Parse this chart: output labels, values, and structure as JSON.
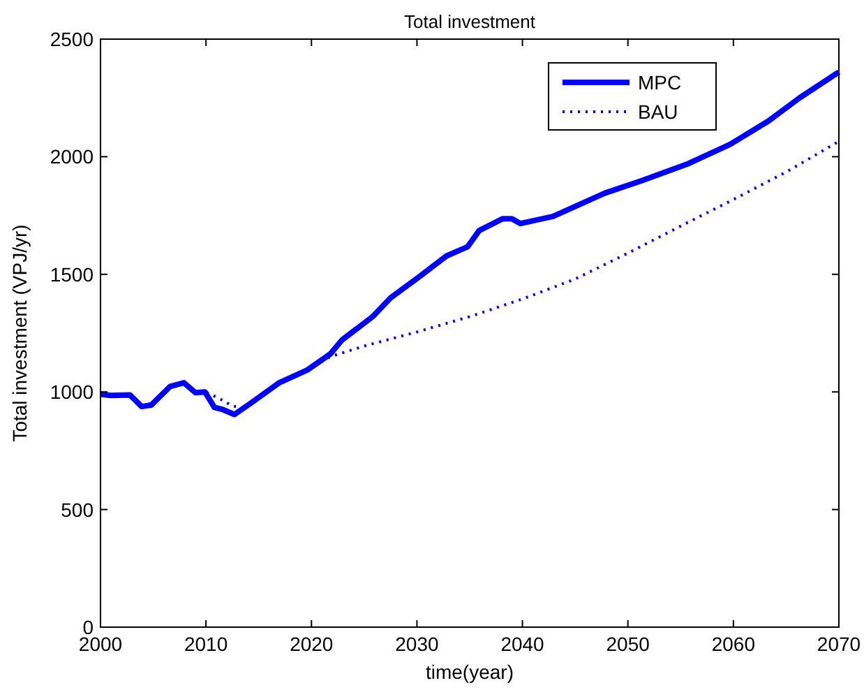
{
  "chart_data": {
    "type": "line",
    "title": "Total investment",
    "xlabel": "time(year)",
    "ylabel": "Total investment (VPJ/yr)",
    "xlim": [
      2000,
      2070
    ],
    "xticks": [
      2000,
      2010,
      2020,
      2030,
      2040,
      2050,
      2060,
      2070
    ],
    "ylim": [
      0,
      2500
    ],
    "yticks": [
      0,
      500,
      1000,
      1500,
      2000,
      2500
    ],
    "grid": false,
    "legend": "top right",
    "series": [
      {
        "name": "MPC",
        "color": "#0000ff",
        "line_style": "solid",
        "x": [
          2000,
          2001,
          2002.8,
          2003.9,
          2004.8,
          2006.6,
          2007.9,
          2009,
          2009.9,
          2010.8,
          2011.6,
          2012.7,
          2014.3,
          2016.9,
          2019.6,
          2021.8,
          2022.9,
          2025.8,
          2027.5,
          2030.2,
          2032.8,
          2034.8,
          2035.9,
          2038.1,
          2039,
          2039.8,
          2042.9,
          2047.8,
          2051.3,
          2055.7,
          2059.7,
          2063.3,
          2066.3,
          2070
        ],
        "values": [
          990,
          985,
          987,
          938,
          944,
          1023,
          1039,
          997,
          1000,
          934,
          925,
          904,
          954,
          1038,
          1093,
          1162,
          1221,
          1320,
          1400,
          1489,
          1578,
          1617,
          1686,
          1736,
          1736,
          1716,
          1746,
          1845,
          1898,
          1970,
          2053,
          2151,
          2251,
          2360
        ]
      },
      {
        "name": "BAU",
        "color": "#0000ff",
        "line_style": "dotted",
        "x": [
          2000,
          2001,
          2002.8,
          2003.9,
          2004.8,
          2006.6,
          2007.9,
          2009,
          2009.9,
          2011.2,
          2012.5,
          2013.5,
          2014.3,
          2016.9,
          2019.6,
          2021.8,
          2025,
          2030,
          2035,
          2040,
          2045,
          2050,
          2055,
          2060,
          2065,
          2070
        ],
        "values": [
          990,
          985,
          987,
          938,
          944,
          1023,
          1039,
          997,
          1000,
          974,
          940,
          935,
          954,
          1038,
          1093,
          1150,
          1195,
          1255,
          1320,
          1395,
          1480,
          1590,
          1705,
          1818,
          1935,
          2065
        ]
      }
    ]
  }
}
